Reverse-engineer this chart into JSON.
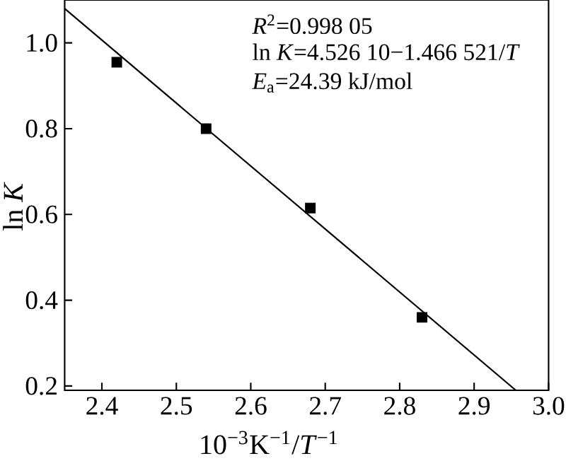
{
  "chart_data": {
    "type": "scatter",
    "xlabel": "10$^{−3}$K$^{−1}$/*T*$^{−1}$",
    "ylabel": "ln *K*",
    "x": [
      2.42,
      2.54,
      2.68,
      2.83
    ],
    "series": [
      {
        "color": "#000000",
        "marker": "square",
        "values": [
          0.955,
          0.8,
          0.615,
          0.36
        ]
      },
      {
        "type": "line",
        "color": "#000000",
        "marker": "none",
        "line_style": "solid",
        "x": [
          2.35,
          2.956
        ],
        "values": [
          1.08,
          0.19
        ]
      }
    ],
    "xlim": [
      2.35,
      3.0
    ],
    "ylim": [
      0.19,
      1.1
    ],
    "xticks": [
      2.4,
      2.5,
      2.6,
      2.7,
      2.8,
      2.9,
      "3.0"
    ],
    "yticks": [
      0.2,
      0.4,
      0.6,
      0.8,
      "1.0"
    ],
    "annotations": [
      "*R*$^{2}$=0.998 05",
      "ln *K*=4.526 10−1.466 521/*T*",
      "*E*$_{a}$=24.39 kJ/mol"
    ],
    "grid": false
  }
}
